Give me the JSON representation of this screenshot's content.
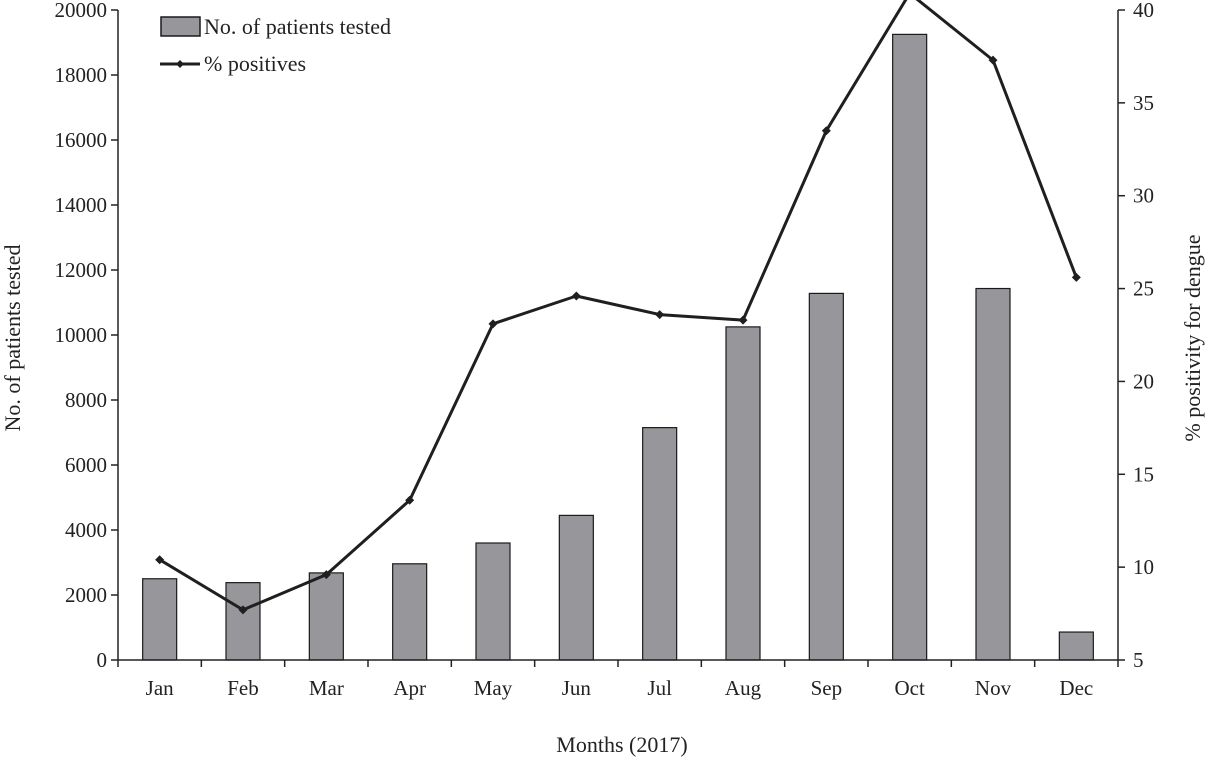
{
  "chart_data": {
    "type": "bar",
    "categories": [
      "Jan",
      "Feb",
      "Mar",
      "Apr",
      "May",
      "Jun",
      "Jul",
      "Aug",
      "Sep",
      "Oct",
      "Nov",
      "Dec"
    ],
    "series": [
      {
        "name": "No. of patients tested",
        "type": "bar",
        "axis": "left",
        "values": [
          2500,
          2380,
          2680,
          2960,
          3600,
          4450,
          7150,
          10250,
          11280,
          19250,
          11430,
          860
        ]
      },
      {
        "name": "% positives",
        "type": "line",
        "axis": "right",
        "values": [
          10.4,
          7.7,
          9.6,
          13.6,
          23.1,
          24.6,
          23.6,
          23.3,
          33.5,
          40.9,
          37.3,
          25.6
        ]
      }
    ],
    "xlabel": "Months  (2017)",
    "ylabel": "No. of patients tested",
    "y2label": "% positivity for dengue",
    "ylim": [
      0,
      20000
    ],
    "y2lim": [
      5,
      40
    ],
    "yticks": [
      0,
      2000,
      4000,
      6000,
      8000,
      10000,
      12000,
      14000,
      16000,
      18000,
      20000
    ],
    "y2ticks": [
      5,
      10,
      15,
      20,
      25,
      30,
      35,
      40
    ],
    "grid": false,
    "legend_position": "top-left",
    "colors": {
      "bar_fill": "#97979b",
      "bar_stroke": "#1a1a1a",
      "line": "#1f1f1f",
      "axis": "#222222"
    }
  }
}
